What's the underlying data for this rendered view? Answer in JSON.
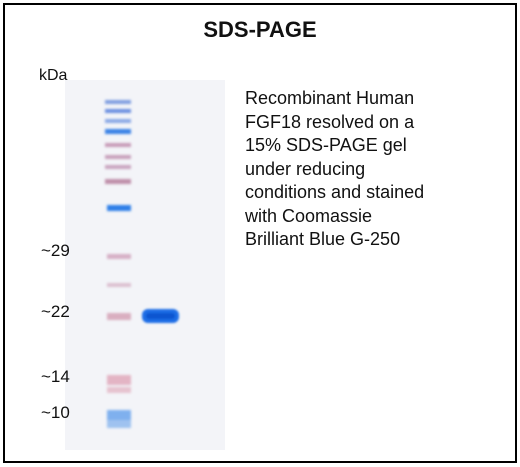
{
  "title": "SDS-PAGE",
  "unit_label": "kDa",
  "markers": [
    "~29",
    "~22",
    "~14",
    "~10"
  ],
  "caption_lines": [
    "Recombinant Human",
    "FGF18 resolved on a",
    "15% SDS-PAGE gel",
    "under reducing",
    "conditions and stained",
    "with Coomassie",
    "Brilliant Blue G-250"
  ]
}
